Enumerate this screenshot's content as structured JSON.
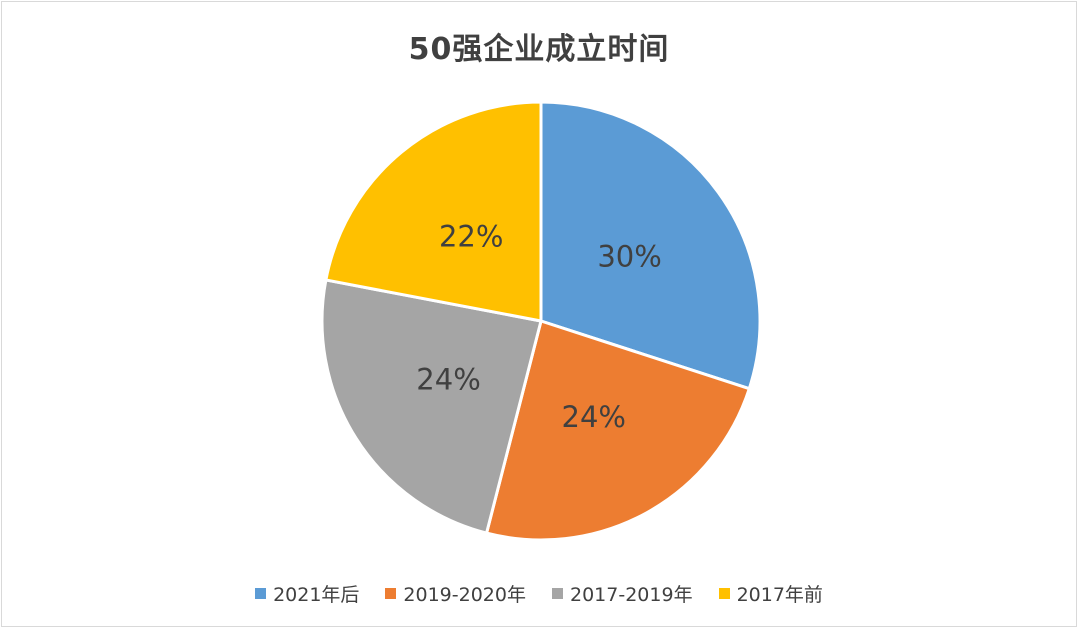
{
  "chart_data": {
    "type": "pie",
    "title": "50强企业成立时间",
    "categories": [
      "2021年后",
      "2019-2020年",
      "2017-2019年",
      "2017年前"
    ],
    "values": [
      30,
      24,
      24,
      22
    ],
    "labels": [
      "30%",
      "24%",
      "24%",
      "22%"
    ],
    "colors": [
      "#5b9bd5",
      "#ed7d31",
      "#a5a5a5",
      "#ffc000"
    ],
    "start_angle_deg": 0,
    "direction": "clockwise",
    "legend_position": "bottom"
  }
}
